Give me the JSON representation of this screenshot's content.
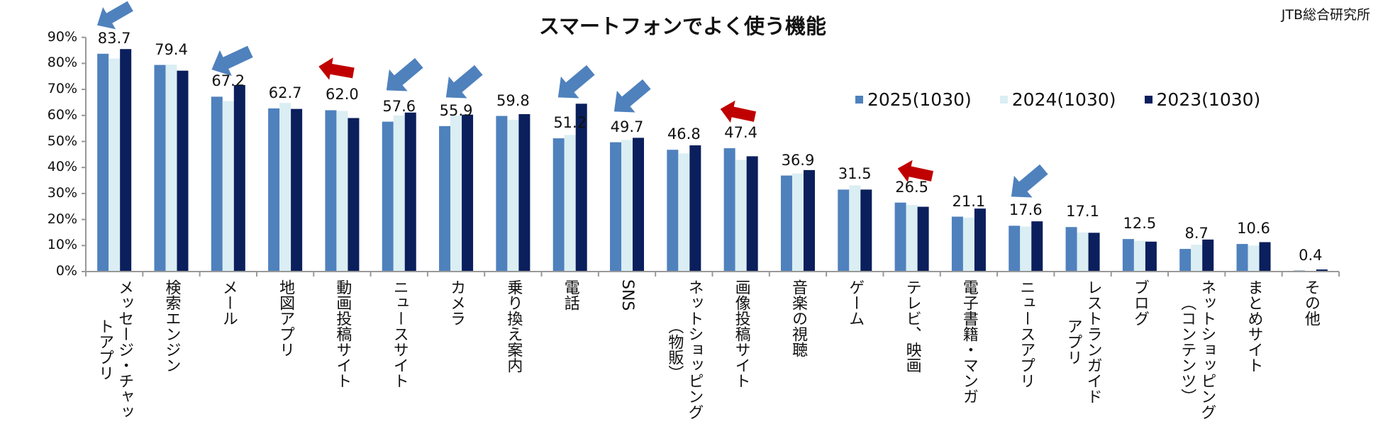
{
  "title": "スマートフォンでよく使う機能",
  "source": "JTB総合研究所",
  "colors": {
    "2025": "#4F81BD",
    "2024": "#DAEEF3",
    "2023": "#0A1F5C",
    "arrow_blue": "#4F81BD",
    "arrow_red": "#C00000"
  },
  "chart_data": {
    "type": "bar",
    "title": "スマートフォンでよく使う機能",
    "ylim": [
      0,
      90
    ],
    "yticks": [
      "0%",
      "10%",
      "20%",
      "30%",
      "40%",
      "50%",
      "60%",
      "70%",
      "80%",
      "90%"
    ],
    "legend_position": "top-right",
    "categories": [
      "メッセージ・チャッ\nトアプリ",
      "検索エンジン",
      "メール",
      "地図アプリ",
      "動画投稿サイト",
      "ニュースサイト",
      "カメラ",
      "乗り換え案内",
      "電話",
      "SNS",
      "ネットショッピング\n（物販）",
      "画像投稿サイト",
      "音楽の視聴",
      "ゲーム",
      "テレビ、映画",
      "電子書籍・マンガ",
      "ニュースアプリ",
      "レストランガイド\nアプリ",
      "ブログ",
      "ネットショッピング\n（コンテンツ）",
      "まとめサイト",
      "その他"
    ],
    "series": [
      {
        "name": "2025(1030)",
        "values": [
          83.7,
          79.4,
          67.2,
          62.7,
          62.0,
          57.6,
          55.9,
          59.8,
          51.2,
          49.7,
          46.8,
          47.4,
          36.9,
          31.5,
          26.5,
          21.1,
          17.6,
          17.1,
          12.5,
          8.7,
          10.6,
          0.4
        ]
      },
      {
        "name": "2024(1030)",
        "values": [
          81.9,
          79.5,
          65.5,
          64.8,
          61.7,
          60.0,
          59.9,
          58.3,
          52.5,
          50.6,
          45.4,
          42.9,
          37.7,
          33.1,
          25.6,
          20.7,
          17.3,
          15.0,
          11.8,
          10.3,
          10.0,
          0.2
        ]
      },
      {
        "name": "2023(1030)",
        "values": [
          85.5,
          77.2,
          71.7,
          62.5,
          59.0,
          61.1,
          60.3,
          60.5,
          64.5,
          51.4,
          48.5,
          44.3,
          39.0,
          31.5,
          24.9,
          24.2,
          19.3,
          14.9,
          11.5,
          12.3,
          11.3,
          0.8
        ]
      }
    ],
    "data_labels": [
      "83.7",
      "79.4",
      "67.2",
      "62.7",
      "62.0",
      "57.6",
      "55.9",
      "59.8",
      "51.2",
      "49.7",
      "46.8",
      "47.4",
      "36.9",
      "31.5",
      "26.5",
      "21.1",
      "17.6",
      "17.1",
      "12.5",
      "8.7",
      "10.6",
      "0.4"
    ]
  }
}
